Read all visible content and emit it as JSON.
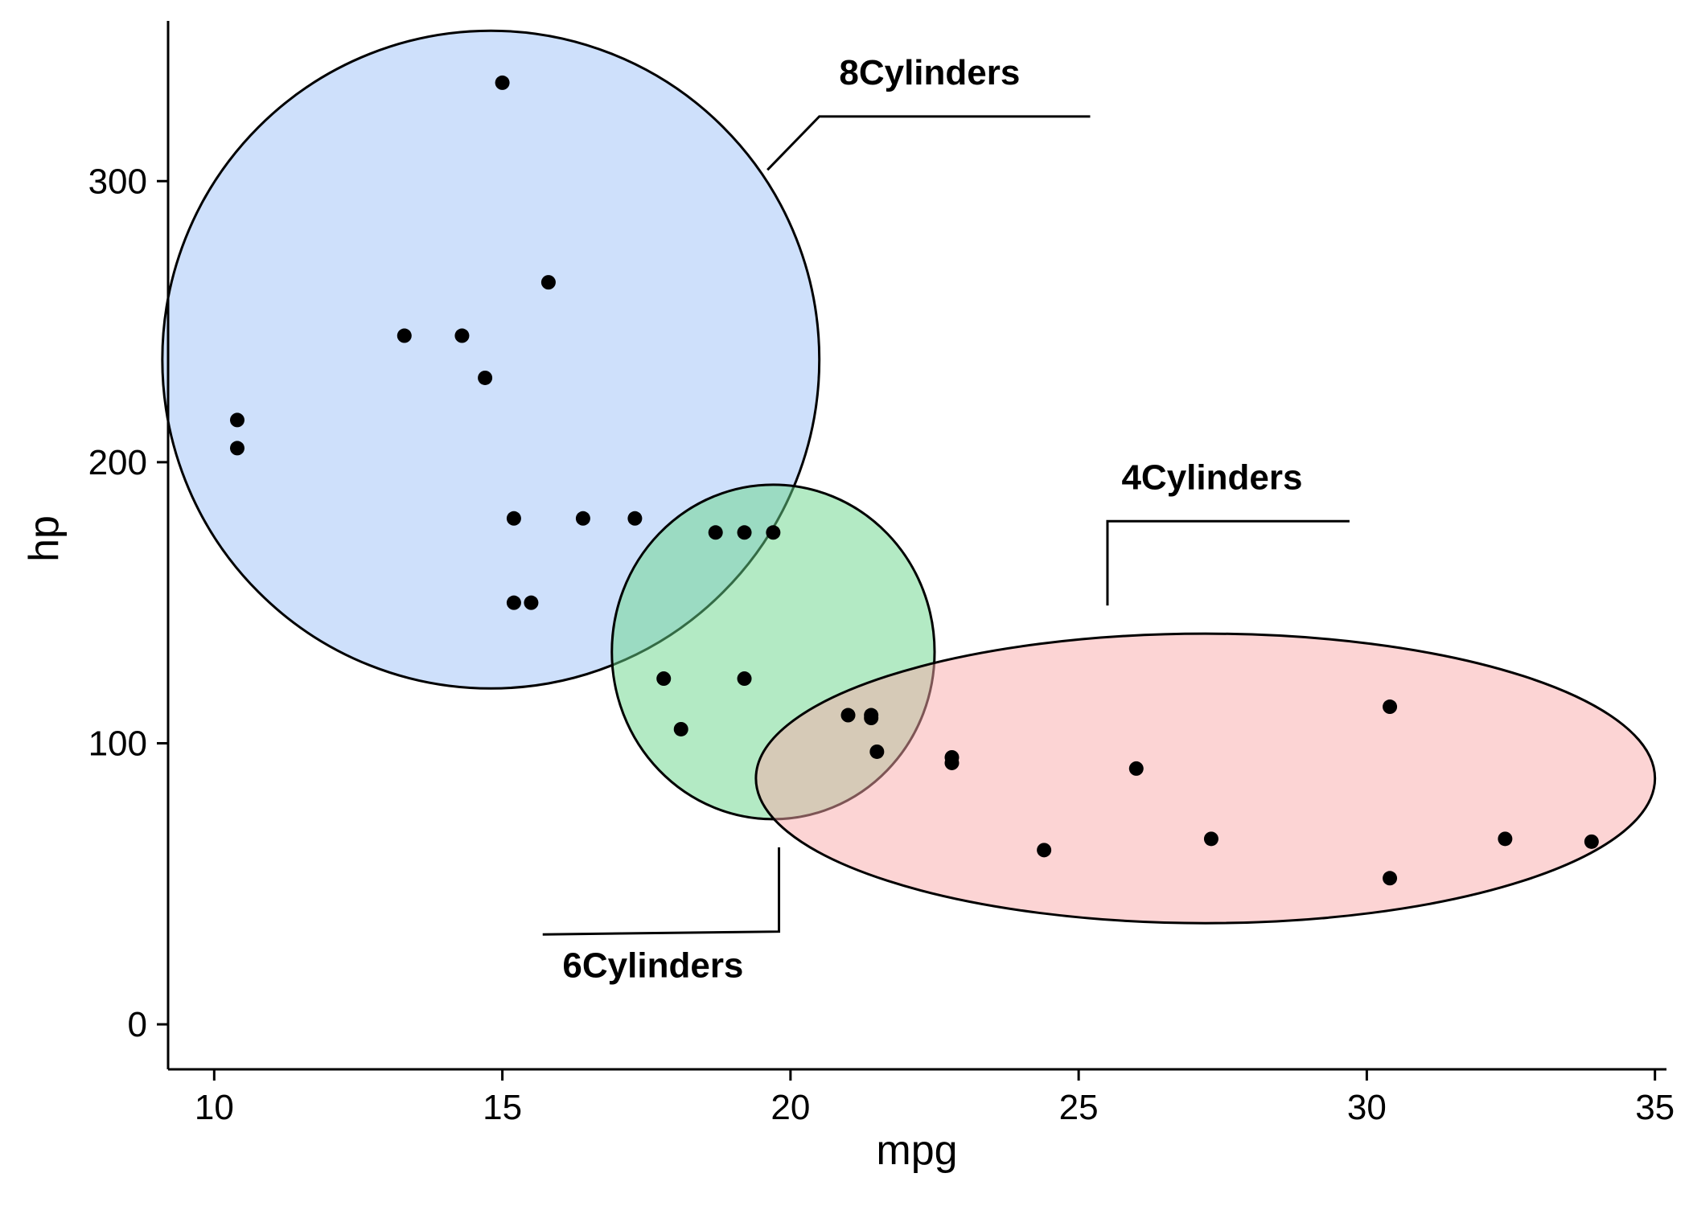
{
  "chart_data": {
    "type": "scatter",
    "xlabel": "mpg",
    "ylabel": "hp",
    "xlim": [
      9.2,
      35.2
    ],
    "ylim": [
      -16,
      357
    ],
    "xticks": [
      10,
      15,
      20,
      25,
      30,
      35
    ],
    "yticks": [
      0,
      100,
      200,
      300
    ],
    "grid": false,
    "points": [
      {
        "x": 15.0,
        "y": 335
      },
      {
        "x": 15.8,
        "y": 264
      },
      {
        "x": 13.3,
        "y": 245
      },
      {
        "x": 14.3,
        "y": 245
      },
      {
        "x": 14.7,
        "y": 230
      },
      {
        "x": 10.4,
        "y": 215
      },
      {
        "x": 10.4,
        "y": 205
      },
      {
        "x": 15.2,
        "y": 180
      },
      {
        "x": 16.4,
        "y": 180
      },
      {
        "x": 17.3,
        "y": 180
      },
      {
        "x": 18.7,
        "y": 175
      },
      {
        "x": 19.2,
        "y": 175
      },
      {
        "x": 19.7,
        "y": 175
      },
      {
        "x": 15.2,
        "y": 150
      },
      {
        "x": 15.5,
        "y": 150
      },
      {
        "x": 17.8,
        "y": 123
      },
      {
        "x": 19.2,
        "y": 123
      },
      {
        "x": 18.1,
        "y": 105
      },
      {
        "x": 21.0,
        "y": 110
      },
      {
        "x": 21.4,
        "y": 110
      },
      {
        "x": 21.4,
        "y": 109
      },
      {
        "x": 21.5,
        "y": 97
      },
      {
        "x": 22.8,
        "y": 95
      },
      {
        "x": 22.8,
        "y": 93
      },
      {
        "x": 26.0,
        "y": 91
      },
      {
        "x": 30.4,
        "y": 113
      },
      {
        "x": 27.3,
        "y": 66
      },
      {
        "x": 24.4,
        "y": 62
      },
      {
        "x": 30.4,
        "y": 52
      },
      {
        "x": 32.4,
        "y": 66
      },
      {
        "x": 33.9,
        "y": 65
      }
    ],
    "groups": [
      {
        "label": "8Cylinders",
        "color": "#9ec2f7",
        "ellipse": {
          "cx": 14.8,
          "cy": 236.5,
          "rx": 5.7,
          "ry": 117,
          "angle_deg": 0
        },
        "label_pos": {
          "x": 20.6,
          "y": 323
        },
        "leader": [
          {
            "x": 19.6,
            "y": 304
          },
          {
            "x": 20.5,
            "y": 323
          },
          {
            "x": 25.2,
            "y": 323
          }
        ]
      },
      {
        "label": "6Cylinders",
        "color": "#67d58a",
        "ellipse": {
          "cx": 19.7,
          "cy": 132.5,
          "rx": 2.8,
          "ry": 59.5,
          "angle_deg": 0
        },
        "label_pos": {
          "x": 15.8,
          "y": 21
        },
        "leader": [
          {
            "x": 19.8,
            "y": 63
          },
          {
            "x": 19.8,
            "y": 33
          },
          {
            "x": 15.7,
            "y": 32
          }
        ]
      },
      {
        "label": "4Cylinders",
        "color": "#f9a9a9",
        "ellipse": {
          "cx": 27.2,
          "cy": 87.5,
          "rx": 7.8,
          "ry": 51.5,
          "angle_deg": 0
        },
        "label_pos": {
          "x": 25.5,
          "y": 179
        },
        "leader": [
          {
            "x": 25.5,
            "y": 149
          },
          {
            "x": 25.5,
            "y": 179
          },
          {
            "x": 29.7,
            "y": 179
          }
        ]
      }
    ]
  }
}
